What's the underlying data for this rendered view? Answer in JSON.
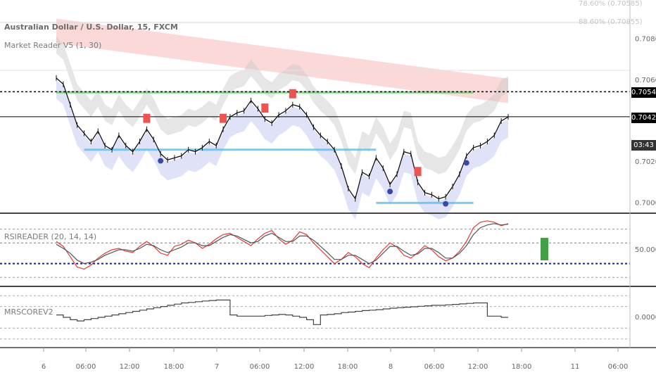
{
  "legend": {
    "main_title": "Australian Dollar / U.S. Dollar, 15, FXCM",
    "indicator_main": "Market Reader V5 (1, 30)",
    "indicator_rsi": "RSIREADER (20, 14, 14)",
    "indicator_score": "MRSCOREV2"
  },
  "price_tags": {
    "last_upper": "0.70543",
    "last_current": "0.70421",
    "countdown": "03:43"
  },
  "faint_labels": {
    "top_right_1": "78.60% (0.70585)",
    "top_right_2": "88.60% (0.70855)"
  },
  "colors": {
    "price": "#111111",
    "rsi": "#e53935",
    "rsi_signal": "#555555",
    "score": "#444444",
    "green_level": "#5cd65c",
    "cyan_level": "#4fc3f7",
    "red_band": "#f7b3b3",
    "blue_band": "#c7cbf2",
    "gray_band": "#c8c8c8"
  },
  "chart_data": [
    {
      "type": "line",
      "panel": "price",
      "y_ticks": [
        "0.70800",
        "0.70600",
        "0.70400",
        "0.70200",
        "0.70000"
      ],
      "ylim": [
        0.6996,
        0.7095
      ],
      "x_ticks": [
        "6",
        "06:00",
        "12:00",
        "18:00",
        "7",
        "06:00",
        "12:00",
        "18:00",
        "8",
        "06:00",
        "12:00",
        "18:00",
        "11",
        "06:00"
      ],
      "x": [
        0,
        3,
        6,
        9,
        12,
        15,
        18,
        21,
        24,
        27,
        30,
        33,
        36,
        39,
        42,
        45,
        48,
        51,
        54,
        57,
        60,
        63,
        66,
        69,
        72,
        75,
        78,
        81,
        84,
        87,
        90,
        93,
        96,
        99,
        102,
        105,
        108,
        111,
        114,
        117,
        120,
        123,
        126,
        129,
        132,
        135,
        138,
        141,
        144,
        147,
        150,
        153,
        156,
        159,
        162,
        165,
        168,
        171,
        174,
        177,
        180,
        183,
        186,
        189,
        192,
        195
      ],
      "values": [
        0.7061,
        0.7058,
        0.7048,
        0.7038,
        0.7034,
        0.703,
        0.7035,
        0.7028,
        0.7026,
        0.7033,
        0.7028,
        0.7025,
        0.703,
        0.7036,
        0.7031,
        0.7024,
        0.7021,
        0.7022,
        0.7023,
        0.7026,
        0.7025,
        0.7027,
        0.703,
        0.7028,
        0.7036,
        0.7042,
        0.7044,
        0.7045,
        0.705,
        0.7046,
        0.7041,
        0.7039,
        0.7043,
        0.7045,
        0.7048,
        0.7047,
        0.7043,
        0.7037,
        0.7033,
        0.703,
        0.7026,
        0.7018,
        0.7007,
        0.7002,
        0.7015,
        0.7013,
        0.7022,
        0.7017,
        0.7009,
        0.7014,
        0.7025,
        0.7024,
        0.701,
        0.7005,
        0.7004,
        0.7002,
        0.7003,
        0.7008,
        0.7014,
        0.7023,
        0.7027,
        0.7028,
        0.703,
        0.7033,
        0.704,
        0.7042
      ],
      "levels": {
        "green": 0.7054,
        "cyan_left": 0.7026,
        "cyan_right": 0.7,
        "dotted_upper": 0.70543,
        "solid_current": 0.70421
      },
      "markers": [
        {
          "kind": "S",
          "x": 39
        },
        {
          "kind": "S",
          "x": 72
        },
        {
          "kind": "S",
          "x": 90
        },
        {
          "kind": "S",
          "x": 102
        },
        {
          "kind": "S",
          "x": 156
        },
        {
          "kind": "B",
          "x": 45
        },
        {
          "kind": "B",
          "x": 144
        },
        {
          "kind": "B",
          "x": 168
        },
        {
          "kind": "B",
          "x": 177
        }
      ]
    },
    {
      "type": "line",
      "panel": "rsi",
      "y_ticks": [
        "50.0000"
      ],
      "ylim": [
        0,
        100
      ],
      "x": [
        0,
        3,
        6,
        9,
        12,
        15,
        18,
        21,
        24,
        27,
        30,
        33,
        36,
        39,
        42,
        45,
        48,
        51,
        54,
        57,
        60,
        63,
        66,
        69,
        72,
        75,
        78,
        81,
        84,
        87,
        90,
        93,
        96,
        99,
        102,
        105,
        108,
        111,
        114,
        117,
        120,
        123,
        126,
        129,
        132,
        135,
        138,
        141,
        144,
        147,
        150,
        153,
        156,
        159,
        162,
        165,
        168,
        171,
        174,
        177,
        180,
        183,
        186,
        189,
        192,
        195
      ],
      "series": [
        {
          "name": "rsi",
          "values": [
            62,
            55,
            40,
            25,
            22,
            28,
            38,
            45,
            50,
            52,
            48,
            46,
            55,
            62,
            55,
            45,
            42,
            55,
            58,
            64,
            60,
            52,
            58,
            66,
            72,
            74,
            68,
            62,
            56,
            66,
            74,
            78,
            66,
            58,
            64,
            76,
            72,
            60,
            50,
            40,
            30,
            36,
            46,
            40,
            30,
            24,
            38,
            50,
            60,
            54,
            42,
            38,
            46,
            56,
            50,
            40,
            34,
            38,
            48,
            62,
            82,
            90,
            92,
            90,
            85,
            88
          ]
        },
        {
          "name": "signal",
          "values": [
            58,
            52,
            45,
            35,
            30,
            32,
            36,
            42,
            46,
            50,
            50,
            48,
            52,
            58,
            56,
            50,
            46,
            50,
            54,
            60,
            60,
            56,
            56,
            62,
            68,
            72,
            70,
            65,
            60,
            62,
            70,
            74,
            68,
            62,
            62,
            70,
            70,
            64,
            55,
            46,
            36,
            36,
            42,
            42,
            36,
            30,
            35,
            45,
            55,
            55,
            48,
            42,
            44,
            52,
            52,
            46,
            38,
            38,
            45,
            56,
            72,
            82,
            86,
            88,
            86,
            87
          ]
        }
      ],
      "levels": {
        "dotted_upper": 80,
        "dotted_mid_upper": 60,
        "blue_dotted": 30,
        "dotted_lower": 10
      }
    },
    {
      "type": "line",
      "panel": "score",
      "y_ticks": [
        "0.0000"
      ],
      "ylim": [
        -1.2,
        1.2
      ],
      "x": [
        0,
        3,
        6,
        9,
        12,
        15,
        18,
        21,
        24,
        27,
        30,
        33,
        36,
        39,
        42,
        45,
        48,
        51,
        54,
        57,
        60,
        63,
        66,
        69,
        72,
        75,
        78,
        81,
        84,
        87,
        90,
        93,
        96,
        99,
        102,
        105,
        108,
        111,
        114,
        117,
        120,
        123,
        126,
        129,
        132,
        135,
        138,
        141,
        144,
        147,
        150,
        153,
        156,
        159,
        162,
        165,
        168,
        171,
        174,
        177,
        180,
        183,
        186,
        189,
        192,
        195
      ],
      "values": [
        0.1,
        0.0,
        -0.1,
        -0.15,
        -0.1,
        -0.05,
        0.0,
        0.05,
        0.1,
        0.15,
        0.2,
        0.25,
        0.3,
        0.35,
        0.4,
        0.45,
        0.5,
        0.55,
        0.6,
        0.62,
        0.65,
        0.68,
        0.7,
        0.72,
        0.72,
        0.1,
        0.05,
        0.05,
        0.05,
        0.05,
        0.08,
        0.1,
        0.12,
        0.1,
        0.05,
        0.0,
        -0.1,
        -0.3,
        0.1,
        0.12,
        0.15,
        0.2,
        0.22,
        0.25,
        0.28,
        0.3,
        0.32,
        0.35,
        0.38,
        0.4,
        0.42,
        0.44,
        0.46,
        0.48,
        0.5,
        0.5,
        0.52,
        0.54,
        0.56,
        0.58,
        0.6,
        0.6,
        0.05,
        0.05,
        0.0,
        0.0
      ]
    }
  ]
}
